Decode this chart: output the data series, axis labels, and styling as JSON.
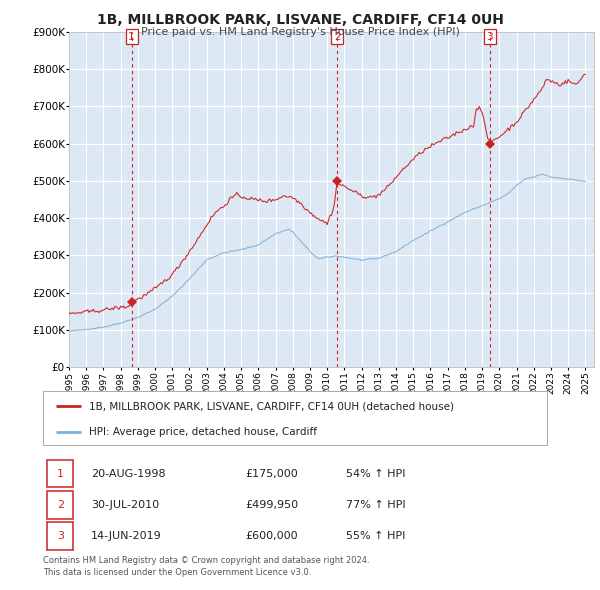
{
  "title": "1B, MILLBROOK PARK, LISVANE, CARDIFF, CF14 0UH",
  "subtitle": "Price paid vs. HM Land Registry's House Price Index (HPI)",
  "bg_color": "#dce9f5",
  "fig_bg_color": "#ffffff",
  "grid_color": "#ffffff",
  "hpi_line_color": "#7fb0d8",
  "price_line_color": "#cc2222",
  "ylim": [
    0,
    900000
  ],
  "yticks": [
    0,
    100000,
    200000,
    300000,
    400000,
    500000,
    600000,
    700000,
    800000,
    900000
  ],
  "ytick_labels": [
    "£0",
    "£100K",
    "£200K",
    "£300K",
    "£400K",
    "£500K",
    "£600K",
    "£700K",
    "£800K",
    "£900K"
  ],
  "xlim_start": 1995.0,
  "xlim_end": 2025.5,
  "xtick_years": [
    1995,
    1996,
    1997,
    1998,
    1999,
    2000,
    2001,
    2002,
    2003,
    2004,
    2005,
    2006,
    2007,
    2008,
    2009,
    2010,
    2011,
    2012,
    2013,
    2014,
    2015,
    2016,
    2017,
    2018,
    2019,
    2020,
    2021,
    2022,
    2023,
    2024,
    2025
  ],
  "sale_points": [
    {
      "num": 1,
      "year": 1998.636,
      "price": 175000,
      "date": "20-AUG-1998",
      "price_str": "£175,000",
      "pct": "54%"
    },
    {
      "num": 2,
      "year": 2010.578,
      "price": 499950,
      "date": "30-JUL-2010",
      "price_str": "£499,950",
      "pct": "77%"
    },
    {
      "num": 3,
      "year": 2019.452,
      "price": 600000,
      "date": "14-JUN-2019",
      "price_str": "£600,000",
      "pct": "55%"
    }
  ],
  "legend_label_red": "1B, MILLBROOK PARK, LISVANE, CARDIFF, CF14 0UH (detached house)",
  "legend_label_blue": "HPI: Average price, detached house, Cardiff",
  "footer_line1": "Contains HM Land Registry data © Crown copyright and database right 2024.",
  "footer_line2": "This data is licensed under the Open Government Licence v3.0."
}
